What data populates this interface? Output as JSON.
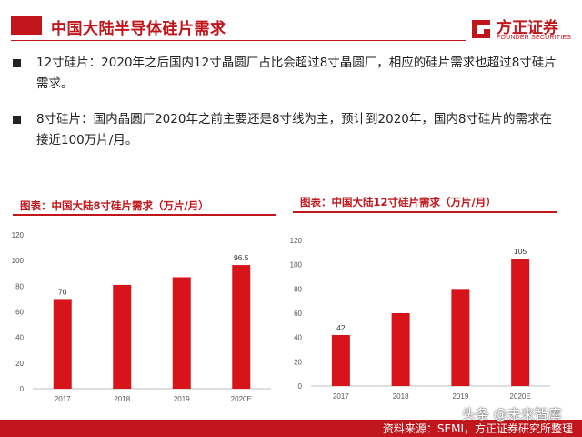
{
  "header": {
    "title": "中国大陆半导体硅片需求",
    "logo_cn": "方正证券",
    "logo_en": "FOUNDER SECURITIES"
  },
  "bullets": [
    {
      "text": "12寸硅片：2020年之后国内12寸晶圆厂占比会超过8寸晶圆厂，相应的硅片需求也超过8寸硅片需求。"
    },
    {
      "text": "8寸硅片：国内晶圆厂2020年之前主要还是8寸线为主，预计到2020年，国内8寸硅片的需求在接近100万片/月。"
    }
  ],
  "chart_data": [
    {
      "type": "bar",
      "title": "图表：中国大陆8寸硅片需求（万片/月）",
      "categories": [
        "2017",
        "2018",
        "2019",
        "2020E"
      ],
      "values": [
        70,
        81,
        87,
        96.5
      ],
      "data_labels": [
        "70",
        "",
        "",
        "96.5"
      ],
      "ylim": [
        0,
        120
      ],
      "yticks": [
        0,
        20,
        40,
        60,
        80,
        100,
        120
      ],
      "xlabel": "",
      "ylabel": "",
      "grid": false,
      "bar_color": "#d8141b"
    },
    {
      "type": "bar",
      "title": "图表：中国大陆12寸硅片需求（万片/月）",
      "categories": [
        "2017",
        "2018",
        "2019",
        "2020E"
      ],
      "values": [
        42,
        60,
        80,
        105
      ],
      "data_labels": [
        "42",
        "",
        "",
        "105"
      ],
      "ylim": [
        0,
        120
      ],
      "yticks": [
        0,
        20,
        40,
        60,
        80,
        100,
        120
      ],
      "xlabel": "",
      "ylabel": "",
      "grid": false,
      "bar_color": "#d8141b"
    }
  ],
  "footer": {
    "source": "资料来源：SEMI，方正证券研究所整理",
    "watermark": "头条 @未来智库"
  },
  "colors": {
    "brand": "#c0161c",
    "bar": "#d8141b"
  }
}
